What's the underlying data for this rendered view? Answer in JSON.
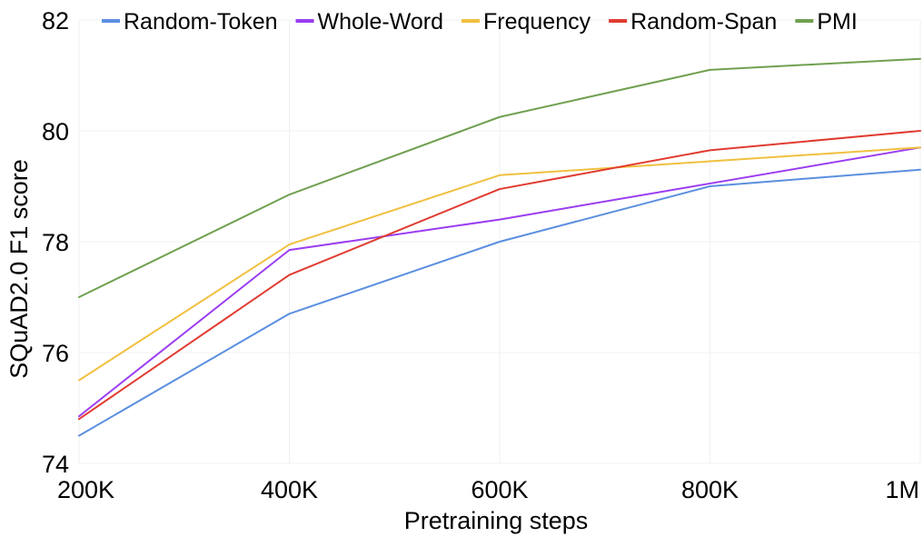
{
  "chart_data": {
    "type": "line",
    "title": "",
    "xlabel": "Pretraining steps",
    "ylabel": "SQuAD2.0 F1 score",
    "categories": [
      "200K",
      "400K",
      "600K",
      "800K",
      "1M"
    ],
    "ylim": [
      74,
      82
    ],
    "yticks": [
      "74",
      "76",
      "78",
      "80",
      "82"
    ],
    "grid": true,
    "legend_position": "top",
    "series": [
      {
        "name": "Random-Token",
        "color": "#5b8fe0",
        "values": [
          74.5,
          76.7,
          78.0,
          79.0,
          79.3
        ]
      },
      {
        "name": "Whole-Word",
        "color": "#9b3df0",
        "values": [
          74.85,
          77.85,
          78.4,
          79.05,
          79.7
        ]
      },
      {
        "name": "Frequency",
        "color": "#f0c040",
        "values": [
          75.5,
          77.95,
          79.2,
          79.45,
          79.7
        ]
      },
      {
        "name": "Random-Span",
        "color": "#e03c31",
        "values": [
          74.8,
          77.4,
          78.95,
          79.65,
          80.0
        ]
      },
      {
        "name": "PMI",
        "color": "#70a050",
        "values": [
          77.0,
          78.85,
          80.25,
          81.1,
          81.3
        ]
      }
    ]
  }
}
